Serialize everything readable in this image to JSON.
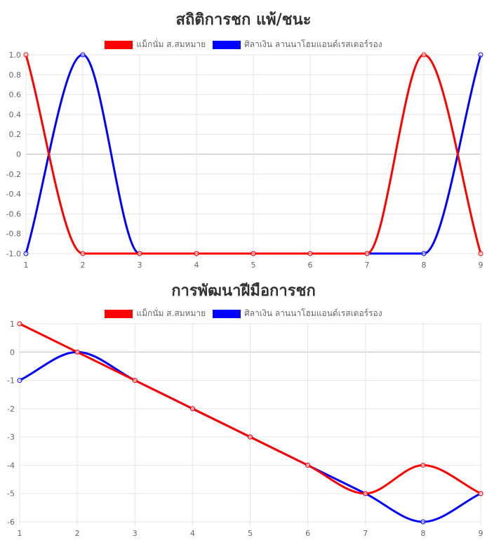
{
  "colors": {
    "series_a": "#ff0000",
    "series_b": "#0000ff",
    "grid": "#e5e5e5",
    "zero_line": "#bdbdbd",
    "title": "#333333",
    "tick": "#666666"
  },
  "chart_data": [
    {
      "type": "line",
      "title": "สถิติการชก แพ้/ชนะ",
      "x": [
        1,
        2,
        3,
        4,
        5,
        6,
        7,
        8,
        9
      ],
      "xticks": [
        "1",
        "2",
        "3",
        "4",
        "5",
        "6",
        "7",
        "8",
        "9"
      ],
      "yticks": [
        "1.0",
        "0.8",
        "0.6",
        "0.4",
        "0.2",
        "0",
        "-0.2",
        "-0.4",
        "-0.6",
        "-0.8",
        "-1.0"
      ],
      "ylim": [
        -1,
        1
      ],
      "legend_position": "top",
      "grid": true,
      "series": [
        {
          "name": "แม็กนั่ม ส.สมหมาย",
          "color": "#ff0000",
          "values": [
            1,
            -1,
            -1,
            -1,
            -1,
            -1,
            -1,
            1,
            -1
          ]
        },
        {
          "name": "ศิลาเงิน ลานนาโฮมแอนด์เรสเตอร์รอง",
          "color": "#0000ff",
          "values": [
            -1,
            1,
            -1,
            -1,
            -1,
            -1,
            -1,
            -1,
            1
          ]
        }
      ]
    },
    {
      "type": "line",
      "title": "การพัฒนาฝีมือการชก",
      "x": [
        1,
        2,
        3,
        4,
        5,
        6,
        7,
        8,
        9
      ],
      "xticks": [
        "1",
        "2",
        "3",
        "4",
        "5",
        "6",
        "7",
        "8",
        "9"
      ],
      "yticks": [
        "1",
        "0",
        "-1",
        "-2",
        "-3",
        "-4",
        "-5",
        "-6"
      ],
      "ylim": [
        -6,
        1
      ],
      "legend_position": "top",
      "grid": true,
      "series": [
        {
          "name": "แม็กนั่ม ส.สมหมาย",
          "color": "#ff0000",
          "values": [
            1,
            0,
            -1,
            -2,
            -3,
            -4,
            -5,
            -4,
            -5
          ]
        },
        {
          "name": "ศิลาเงิน ลานนาโฮมแอนด์เรสเตอร์รอง",
          "color": "#0000ff",
          "values": [
            -1,
            0,
            -1,
            -2,
            -3,
            -4,
            -5,
            -6,
            -5
          ]
        }
      ]
    }
  ]
}
